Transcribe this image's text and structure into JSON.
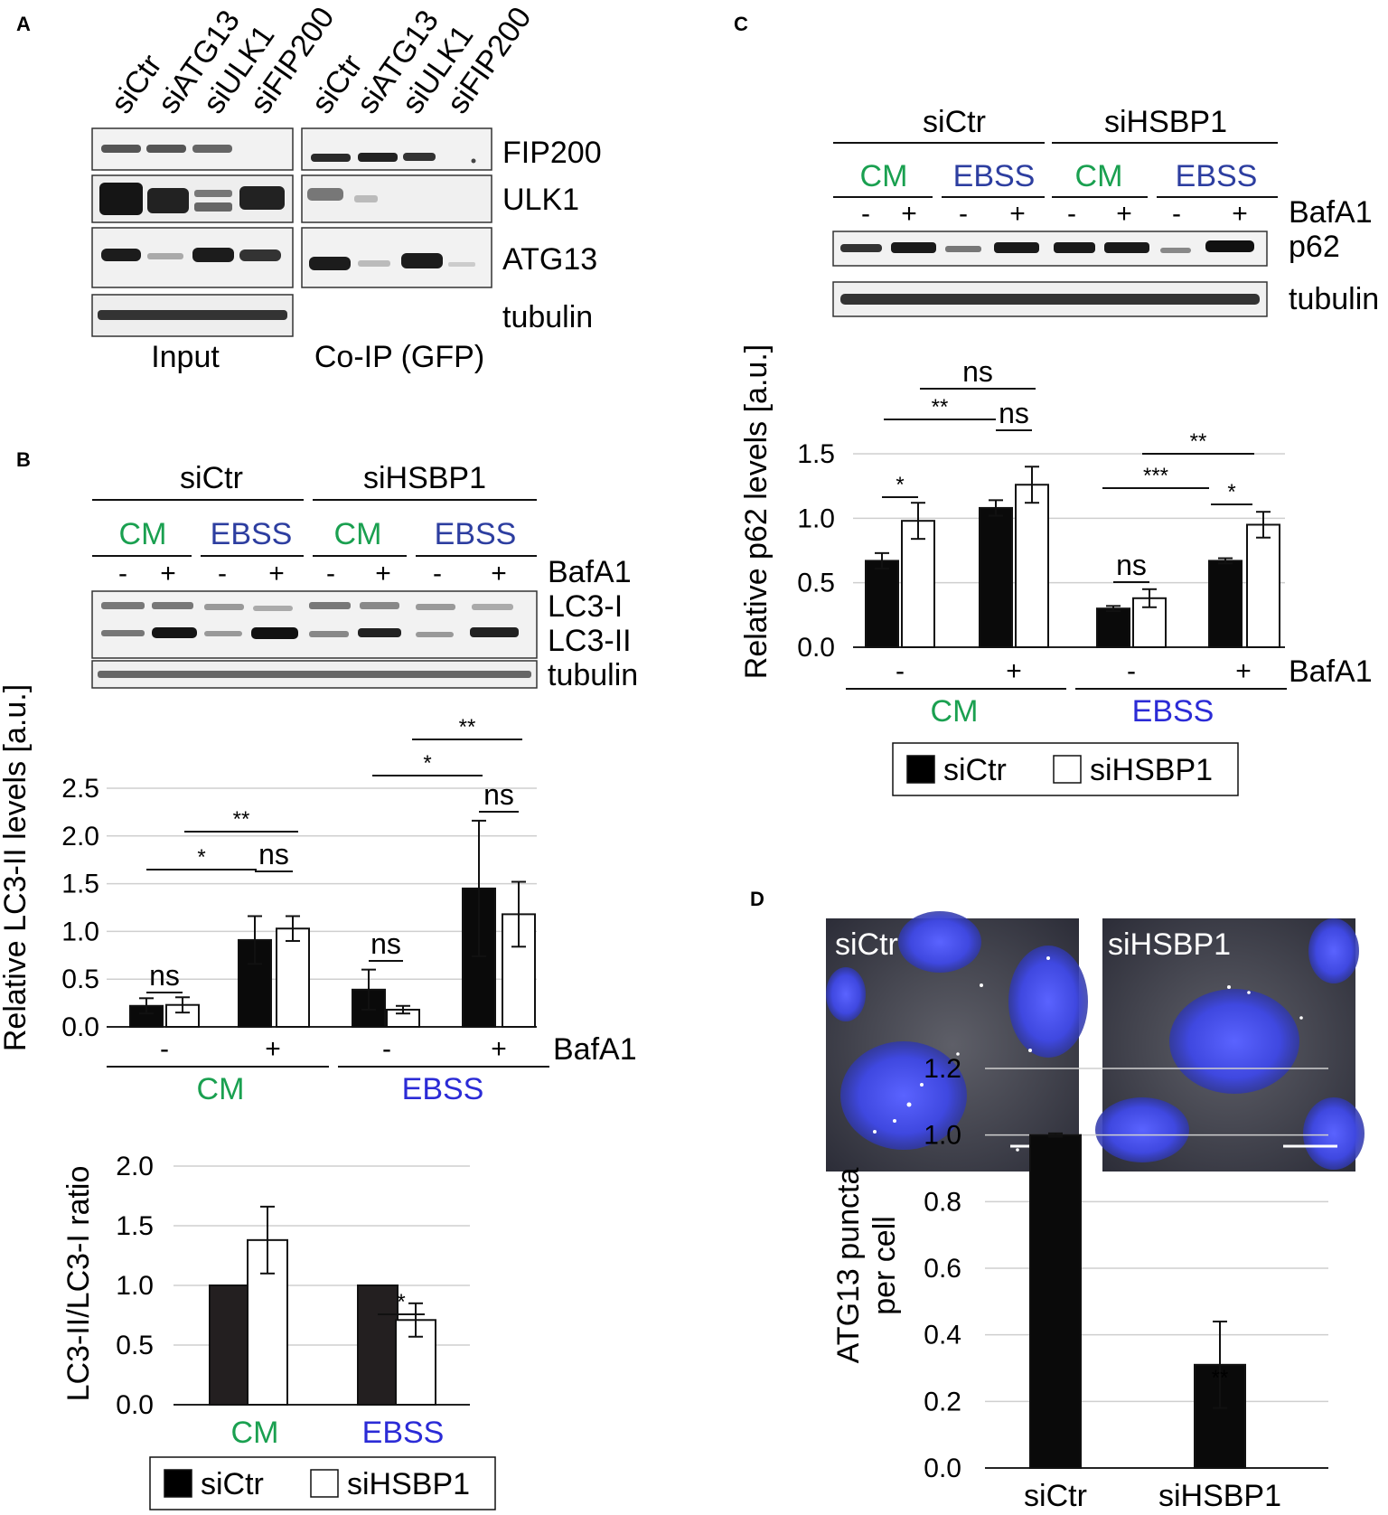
{
  "panels": {
    "A": {
      "label": "A",
      "lanes_input": [
        "siCtr",
        "siATG13",
        "siULK1",
        "siFIP200"
      ],
      "lanes_coip": [
        "siCtr",
        "siATG13",
        "siULK1",
        "siFIP200"
      ],
      "blots": [
        "FIP200",
        "ULK1",
        "ATG13",
        "tubulin"
      ],
      "group_input": "Input",
      "group_coip": "Co-IP (GFP)"
    },
    "B": {
      "label": "B",
      "groups": [
        "siCtr",
        "siHSBP1"
      ],
      "conditions": [
        "CM",
        "EBSS",
        "CM",
        "EBSS"
      ],
      "bafa1_signs": [
        "-",
        "+",
        "-",
        "+",
        "-",
        "+",
        "-",
        "+"
      ],
      "bafa1_label": "BafA1",
      "blot_labels": [
        "LC3-I",
        "LC3-II",
        "tubulin"
      ]
    },
    "C": {
      "label": "C",
      "groups": [
        "siCtr",
        "siHSBP1"
      ],
      "conditions": [
        "CM",
        "EBSS",
        "CM",
        "EBSS"
      ],
      "bafa1_signs": [
        "-",
        "+",
        "-",
        "+",
        "-",
        "+",
        "-",
        "+"
      ],
      "bafa1_label": "BafA1",
      "blot_labels": [
        "p62",
        "tubulin"
      ]
    },
    "D": {
      "label": "D",
      "image_labels": [
        "siCtr",
        "siHSBP1"
      ]
    }
  },
  "chart_data": [
    {
      "id": "B-top",
      "type": "bar",
      "ylabel": "Relative LC3-II levels [a.u.]",
      "ylim": [
        0,
        2.5
      ],
      "yticks": [
        "0.0",
        "0.5",
        "1.0",
        "1.5",
        "2.0",
        "2.5"
      ],
      "categories": [
        "-",
        "+",
        "-",
        "+"
      ],
      "x_extra_label": "BafA1",
      "groups": [
        "CM",
        "EBSS"
      ],
      "series": [
        {
          "name": "siCtr",
          "values": [
            0.22,
            0.91,
            0.39,
            1.45
          ],
          "errors": [
            0.08,
            0.25,
            0.21,
            0.71
          ]
        },
        {
          "name": "siHSBP1",
          "values": [
            0.23,
            1.03,
            0.18,
            1.18
          ],
          "errors": [
            0.08,
            0.13,
            0.04,
            0.34
          ]
        }
      ],
      "annotations": [
        "ns",
        "ns",
        "ns",
        "ns",
        "*",
        "**",
        "*",
        "**"
      ]
    },
    {
      "id": "B-bottom",
      "type": "bar",
      "ylabel": "LC3-II/LC3-I ratio",
      "ylim": [
        0,
        2.0
      ],
      "yticks": [
        "0.0",
        "0.5",
        "1.0",
        "1.5",
        "2.0"
      ],
      "categories": [
        "CM",
        "EBSS"
      ],
      "series": [
        {
          "name": "siCtr",
          "values": [
            1.0,
            1.0
          ],
          "errors": [
            0.0,
            0.0
          ]
        },
        {
          "name": "siHSBP1",
          "values": [
            1.38,
            0.71
          ],
          "errors": [
            0.28,
            0.14
          ]
        }
      ],
      "annotations": [
        "*"
      ],
      "legend": [
        "siCtr",
        "siHSBP1"
      ]
    },
    {
      "id": "C",
      "type": "bar",
      "ylabel": "Relative p62 levels [a.u.]",
      "ylim": [
        0,
        1.5
      ],
      "yticks": [
        "0.0",
        "0.5",
        "1.0",
        "1.5"
      ],
      "categories": [
        "-",
        "+",
        "-",
        "+"
      ],
      "x_extra_label": "BafA1",
      "groups": [
        "CM",
        "EBSS"
      ],
      "series": [
        {
          "name": "siCtr",
          "values": [
            0.67,
            1.08,
            0.3,
            0.67
          ],
          "errors": [
            0.06,
            0.06,
            0.02,
            0.02
          ]
        },
        {
          "name": "siHSBP1",
          "values": [
            0.98,
            1.26,
            0.38,
            0.95
          ],
          "errors": [
            0.14,
            0.14,
            0.07,
            0.1
          ]
        }
      ],
      "annotations": [
        "*",
        "**",
        "ns",
        "ns",
        "ns",
        "**",
        "***",
        "*"
      ],
      "legend": [
        "siCtr",
        "siHSBP1"
      ]
    },
    {
      "id": "D",
      "type": "bar",
      "ylabel": "ATG13 puncta per cell",
      "ylim": [
        0,
        1.2
      ],
      "yticks": [
        "0.0",
        "0.2",
        "0.4",
        "0.6",
        "0.8",
        "1.0",
        "1.2"
      ],
      "categories": [
        "siCtr",
        "siHSBP1"
      ],
      "series": [
        {
          "name": "",
          "values": [
            1.0,
            0.31
          ],
          "errors": [
            0.005,
            0.13
          ]
        }
      ],
      "annotations": [
        "**"
      ]
    }
  ],
  "colors": {
    "cm": "#1aa050",
    "ebss": "#2b2bd6",
    "ebss_dark": "#2d3ea0",
    "bar_dark": "#0a0a0a"
  }
}
